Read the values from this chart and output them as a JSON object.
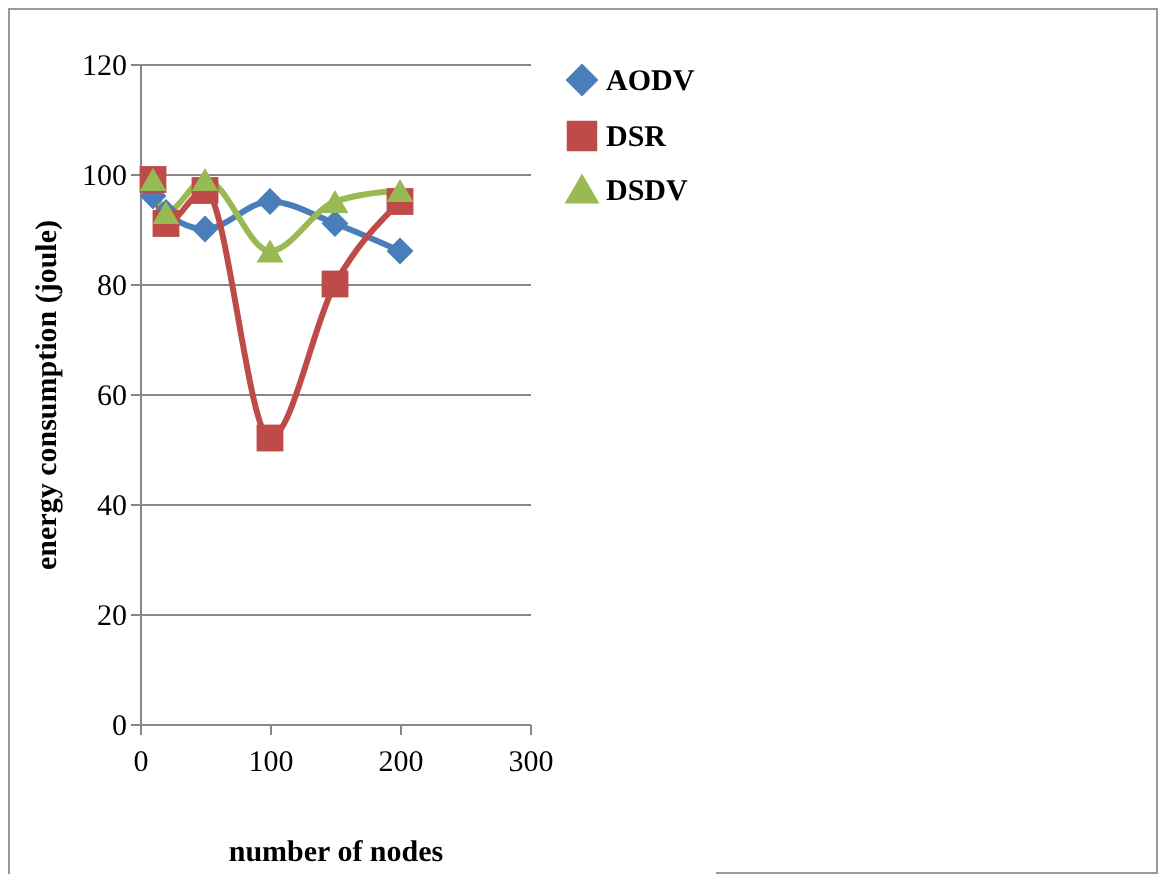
{
  "chart_data": {
    "type": "line",
    "xlabel": "number of nodes",
    "ylabel": "energy consumption (joule)",
    "x": [
      10,
      20,
      50,
      100,
      150,
      200
    ],
    "series": [
      {
        "name": "AODV",
        "color": "#4a7ebb",
        "marker": "diamond",
        "values": [
          96,
          93,
          90,
          95,
          91,
          86
        ]
      },
      {
        "name": "DSR",
        "color": "#be4b48",
        "marker": "square",
        "values": [
          99,
          91,
          97,
          52,
          80,
          95
        ]
      },
      {
        "name": "DSDV",
        "color": "#98b954",
        "marker": "triangle",
        "values": [
          99,
          93,
          99,
          86,
          95,
          97
        ]
      }
    ],
    "xlim": [
      0,
      300
    ],
    "xticks": [
      0,
      100,
      200,
      300
    ],
    "ylim": [
      0,
      120
    ],
    "yticks": [
      0,
      20,
      40,
      60,
      80,
      100,
      120
    ],
    "grid": "y",
    "legend": "right"
  }
}
